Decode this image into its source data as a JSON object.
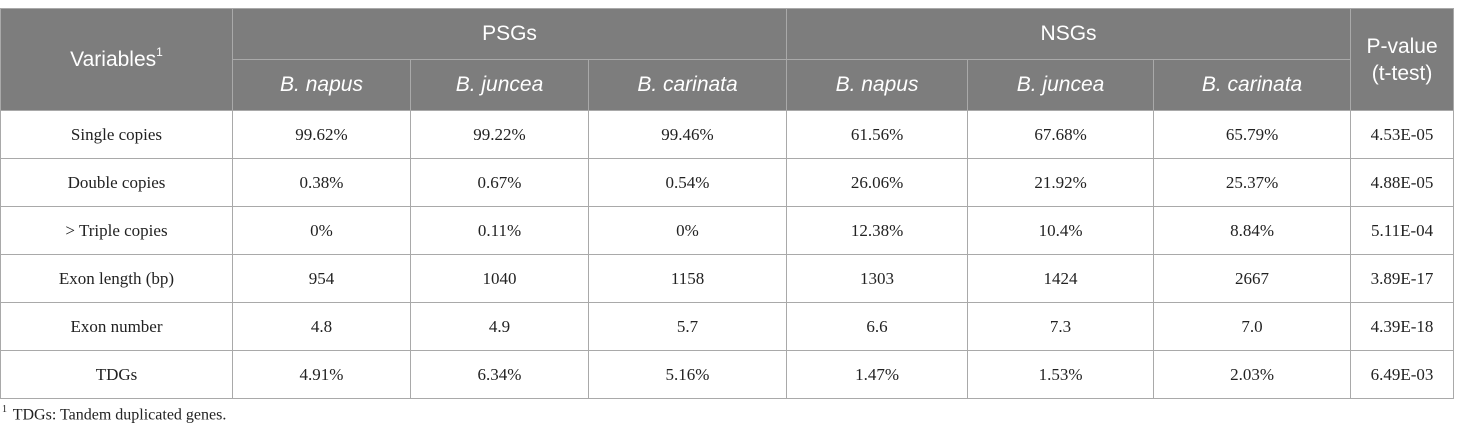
{
  "table": {
    "header": {
      "variables_label": "Variables",
      "variables_sup": "1",
      "group_psg": "PSGs",
      "group_nsg": "NSGs",
      "pvalue_line1": "P-value",
      "pvalue_line2": "(t-test)",
      "species": [
        "B. napus",
        "B. juncea",
        "B. carinata",
        "B. napus",
        "B. juncea",
        "B. carinata"
      ]
    },
    "rows": [
      {
        "label": "Single copies",
        "values": [
          "99.62%",
          "99.22%",
          "99.46%",
          "61.56%",
          "67.68%",
          "65.79%"
        ],
        "p": "4.53E-05"
      },
      {
        "label": "Double copies",
        "values": [
          "0.38%",
          "0.67%",
          "0.54%",
          "26.06%",
          "21.92%",
          "25.37%"
        ],
        "p": "4.88E-05"
      },
      {
        "label": "> Triple copies",
        "values": [
          "0%",
          "0.11%",
          "0%",
          "12.38%",
          "10.4%",
          "8.84%"
        ],
        "p": "5.11E-04"
      },
      {
        "label": "Exon length (bp)",
        "values": [
          "954",
          "1040",
          "1158",
          "1303",
          "1424",
          "2667"
        ],
        "p": "3.89E-17"
      },
      {
        "label": "Exon number",
        "values": [
          "4.8",
          "4.9",
          "5.7",
          "6.6",
          "7.3",
          "7.0"
        ],
        "p": "4.39E-18"
      },
      {
        "label": "TDGs",
        "values": [
          "4.91%",
          "6.34%",
          "5.16%",
          "1.47%",
          "1.53%",
          "2.03%"
        ],
        "p": "6.49E-03"
      }
    ]
  },
  "footnote": {
    "marker": "1",
    "text": "TDGs: Tandem duplicated genes."
  }
}
